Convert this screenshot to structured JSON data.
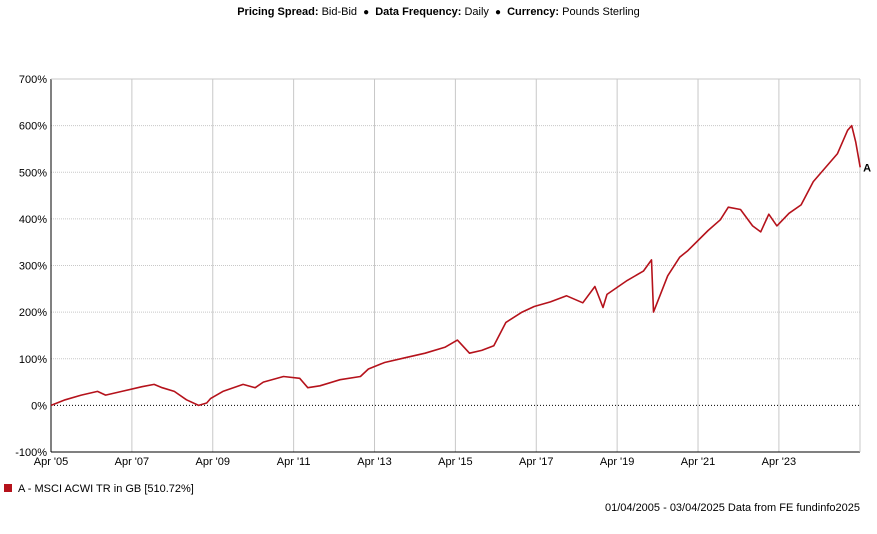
{
  "header": {
    "pricing_spread_label": "Pricing Spread:",
    "pricing_spread_value": "Bid-Bid",
    "separator": "●",
    "frequency_label": "Data Frequency:",
    "frequency_value": "Daily",
    "currency_label": "Currency:",
    "currency_value": "Pounds Sterling"
  },
  "chart_data": {
    "type": "line",
    "x_range": [
      "2005-04-01",
      "2025-04-03"
    ],
    "ylim": [
      -100,
      700
    ],
    "yticks": [
      -100,
      0,
      100,
      200,
      300,
      400,
      500,
      600,
      700
    ],
    "ytick_labels": [
      "-100%",
      "0%",
      "100%",
      "200%",
      "300%",
      "400%",
      "500%",
      "600%",
      "700%"
    ],
    "xtick_labels": [
      "Apr '05",
      "Apr '07",
      "Apr '09",
      "Apr '11",
      "Apr '13",
      "Apr '15",
      "Apr '17",
      "Apr '19",
      "Apr '21",
      "Apr '23"
    ],
    "xtick_years": [
      2005.25,
      2007.25,
      2009.25,
      2011.25,
      2013.25,
      2015.25,
      2017.25,
      2019.25,
      2021.25,
      2023.25
    ],
    "grid": true,
    "series": [
      {
        "name": "A - MSCI ACWI TR in GB",
        "end_label": "A",
        "color": "#b5121b",
        "x": [
          2005.25,
          2005.6,
          2006.0,
          2006.4,
          2006.6,
          2007.0,
          2007.5,
          2007.8,
          2008.0,
          2008.3,
          2008.6,
          2008.9,
          2009.1,
          2009.2,
          2009.5,
          2010.0,
          2010.3,
          2010.5,
          2011.0,
          2011.4,
          2011.6,
          2011.9,
          2012.4,
          2012.9,
          2013.1,
          2013.5,
          2014.0,
          2014.5,
          2015.0,
          2015.3,
          2015.6,
          2015.9,
          2016.2,
          2016.5,
          2016.9,
          2017.2,
          2017.6,
          2018.0,
          2018.4,
          2018.7,
          2018.9,
          2019.0,
          2019.5,
          2019.9,
          2020.1,
          2020.15,
          2020.5,
          2020.8,
          2021.0,
          2021.5,
          2021.8,
          2022.0,
          2022.3,
          2022.6,
          2022.8,
          2023.0,
          2023.2,
          2023.5,
          2023.8,
          2024.1,
          2024.4,
          2024.7,
          2024.95,
          2025.05,
          2025.15,
          2025.26
        ],
        "values": [
          0,
          12,
          22,
          30,
          22,
          30,
          40,
          45,
          38,
          30,
          12,
          0,
          5,
          15,
          30,
          45,
          38,
          50,
          62,
          58,
          38,
          42,
          55,
          62,
          78,
          92,
          102,
          112,
          125,
          140,
          112,
          118,
          128,
          178,
          200,
          212,
          222,
          235,
          220,
          255,
          210,
          238,
          268,
          288,
          312,
          200,
          278,
          318,
          332,
          375,
          398,
          425,
          420,
          385,
          372,
          410,
          385,
          412,
          430,
          480,
          510,
          540,
          590,
          600,
          565,
          510.72
        ]
      }
    ]
  },
  "legend": {
    "text": "A - MSCI ACWI TR in GB [510.72%]"
  },
  "footer": {
    "text": "01/04/2005 - 03/04/2025 Data from FE fundinfo2025"
  }
}
